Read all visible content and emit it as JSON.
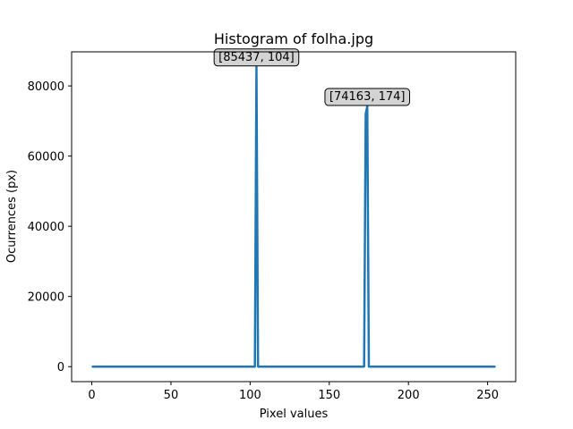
{
  "chart_data": {
    "type": "line",
    "title": "Histogram of folha.jpg",
    "xlabel": "Pixel values",
    "ylabel": "Ocurrences (px)",
    "xlim": [
      -12.75,
      267.75
    ],
    "ylim": [
      -4271.85,
      89708.85
    ],
    "xticks": [
      0,
      50,
      100,
      150,
      200,
      250
    ],
    "yticks": [
      0,
      20000,
      40000,
      60000,
      80000
    ],
    "grid": false,
    "series": [
      {
        "color": "#1f77b4",
        "x": [
          0,
          103,
          104,
          105,
          172,
          173,
          174,
          175,
          255
        ],
        "y": [
          0,
          0,
          85437,
          0,
          0,
          72000,
          74163,
          0,
          0
        ]
      }
    ],
    "annotations": [
      {
        "text": "[85437, 104]",
        "x": 104,
        "y": 85437
      },
      {
        "text": "[74163, 174]",
        "x": 174,
        "y": 74163
      }
    ]
  }
}
